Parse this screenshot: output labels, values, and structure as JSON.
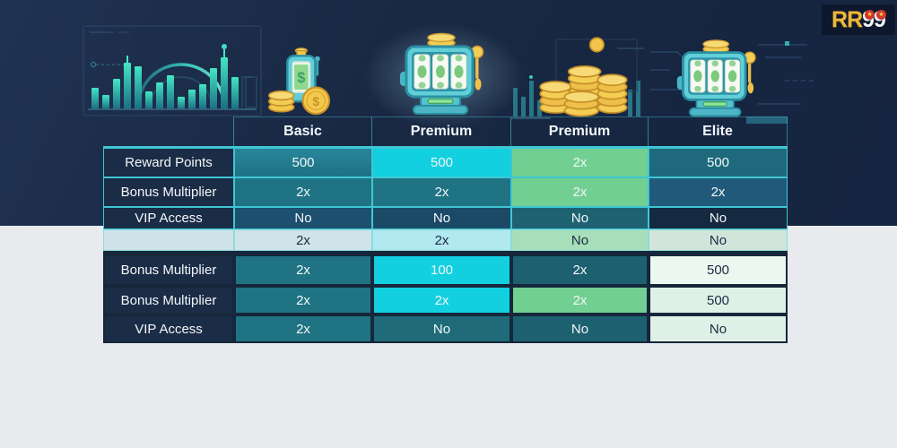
{
  "logo": {
    "rr": "RR",
    "nines": [
      "9",
      "9"
    ],
    "star": "★"
  },
  "table": {
    "headers": [
      "",
      "Basic",
      "Premium",
      "Premium",
      "Elite"
    ],
    "rows": [
      {
        "label": "Reward Points",
        "values": [
          "500",
          "500",
          "2x",
          "500"
        ],
        "styles": [
          "teal",
          "cyan",
          "green",
          "tealdeep"
        ],
        "label_style": "navy",
        "border": "teal"
      },
      {
        "label": "Bonus Multiplier",
        "values": [
          "2x",
          "2x",
          "2x",
          "2x"
        ],
        "styles": [
          "teal2",
          "teal2",
          "green",
          "bluedeep"
        ],
        "label_style": "navy",
        "border": "teal"
      },
      {
        "label": "VIP Access",
        "values": [
          "No",
          "No",
          "No",
          "No"
        ],
        "styles": [
          "navyblue",
          "navyblue2",
          "tealdark",
          "navydark"
        ],
        "label_style": "navy",
        "border": "teal"
      },
      {
        "label": "",
        "values": [
          "2x",
          "2x",
          "No",
          "No"
        ],
        "styles": [
          "lightblue",
          "lightcyan",
          "lightgreen",
          "lightsage"
        ],
        "label_style": "lightlabel",
        "border": "light"
      },
      {
        "label": "Bonus Multiplier",
        "values": [
          "2x",
          "100",
          "2x",
          "500"
        ],
        "styles": [
          "teal2",
          "cyan",
          "tealdark2",
          "offwhite"
        ],
        "label_style": "navy",
        "border": "dark"
      },
      {
        "label": "Bonus Multiplier",
        "values": [
          "2x",
          "2x",
          "2x",
          "500"
        ],
        "styles": [
          "teal2",
          "cyan",
          "green",
          "lightmint"
        ],
        "label_style": "navy",
        "border": "dark"
      },
      {
        "label": "VIP Access",
        "values": [
          "2x",
          "No",
          "No",
          "No"
        ],
        "styles": [
          "teal2",
          "tealdeep2",
          "tealdark2",
          "lightmint"
        ],
        "label_style": "navy",
        "border": "dark"
      }
    ]
  },
  "chart_data": {
    "type": "table",
    "title": "",
    "columns": [
      "",
      "Basic",
      "Premium",
      "Premium",
      "Elite"
    ],
    "rows": [
      [
        "Reward Points",
        "500",
        "500",
        "2x",
        "500"
      ],
      [
        "Bonus Multiplier",
        "2x",
        "2x",
        "2x",
        "2x"
      ],
      [
        "VIP Access",
        "No",
        "No",
        "No",
        "No"
      ],
      [
        "",
        "2x",
        "2x",
        "No",
        "No"
      ],
      [
        "Bonus Multiplier",
        "2x",
        "100",
        "2x",
        "500"
      ],
      [
        "Bonus Multiplier",
        "2x",
        "2x",
        "2x",
        "500"
      ],
      [
        "VIP Access",
        "2x",
        "No",
        "No",
        "No"
      ]
    ]
  },
  "icons": {
    "top_left": "analytics-chart-icon",
    "basic_column": "money-device-icon",
    "premium_column": "slot-machine-icon",
    "premium2_column": "coin-stacks-icon",
    "elite_column": "slot-machine-icon",
    "logo_badge": "star-icon"
  },
  "colors": {
    "background_dark": "#182842",
    "background_light": "#e8eaee",
    "accent_cyan": "#12d0e0",
    "accent_teal": "#1f7383",
    "accent_green": "#71cf92",
    "gold": "#f2c94c",
    "label_navy": "#1b2c46",
    "border_teal": "#3fc6d4",
    "logo_gold": "#ecb73f",
    "logo_red": "#cf3a2c"
  }
}
